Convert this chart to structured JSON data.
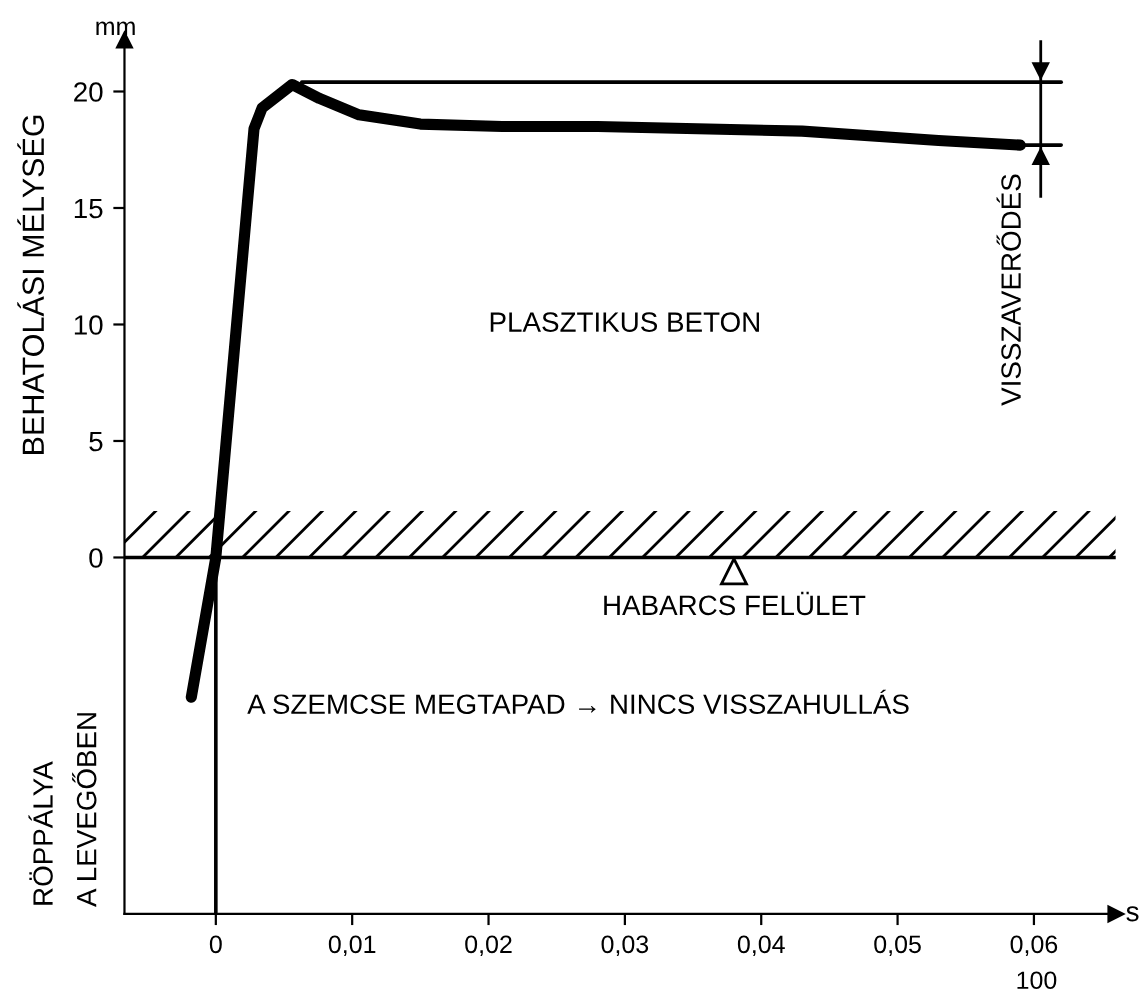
{
  "chart_data": {
    "type": "line",
    "ylabel": "BEHATOLÁSI MÉLYSÉG",
    "xlabel": "s",
    "xlim": [
      -0.0067,
      0.066
    ],
    "ylim": [
      -15.3,
      22.2
    ],
    "xticks": [
      0,
      {
        "value": 0.01,
        "label": "0,01"
      },
      {
        "value": 0.02,
        "label": "0,02"
      },
      {
        "value": 0.03,
        "label": "0,03"
      },
      {
        "value": 0.04,
        "label": "0,04"
      },
      {
        "value": 0.05,
        "label": "0,05"
      },
      {
        "value": 0.06,
        "label": "0,06"
      }
    ],
    "yticks": [
      0,
      5,
      10,
      15,
      20
    ],
    "series": [
      {
        "color": "#000000",
        "x": [
          -0.0018,
          0,
          0.0028,
          0.0034,
          0.0056,
          0.0076,
          0.0105,
          0.015,
          0.021,
          0.028,
          0.043,
          0.053,
          0.059
        ],
        "values": [
          -6.0,
          0,
          18.4,
          19.3,
          20.3,
          19.7,
          19.0,
          18.6,
          18.5,
          18.5,
          18.3,
          17.9,
          17.7
        ]
      },
      {
        "color": "#000000",
        "x": [
          0.0063,
          0.062
        ],
        "values": [
          20.4,
          20.4
        ]
      },
      {
        "color": "#000000",
        "x": [
          0.058,
          0.062
        ],
        "values": [
          17.7,
          17.7
        ]
      },
      {
        "color": "#000000",
        "x": [
          -0.0067,
          0.066
        ],
        "values": [
          0,
          0
        ]
      },
      {
        "color": "#000000",
        "x": [
          0,
          0
        ],
        "values": [
          -15.3,
          0
        ]
      }
    ],
    "bands": [
      {
        "axis": "y",
        "from": 0,
        "to": 2,
        "color": "#000000"
      }
    ],
    "annotations": [
      "mm",
      "PLASZTIKUS BETON",
      "VISSZAVERŐDÉS",
      {
        "text": "HABARCS FELÜLET",
        "x": 0.038,
        "y": 0
      },
      "A SZEMCSE MEGTAPAD → NINCS VISSZAHULLÁS",
      "RÖPPÁLYA",
      "A LEVEGŐBEN",
      "100"
    ],
    "grid": false,
    "legend": false,
    "marker": "none"
  }
}
